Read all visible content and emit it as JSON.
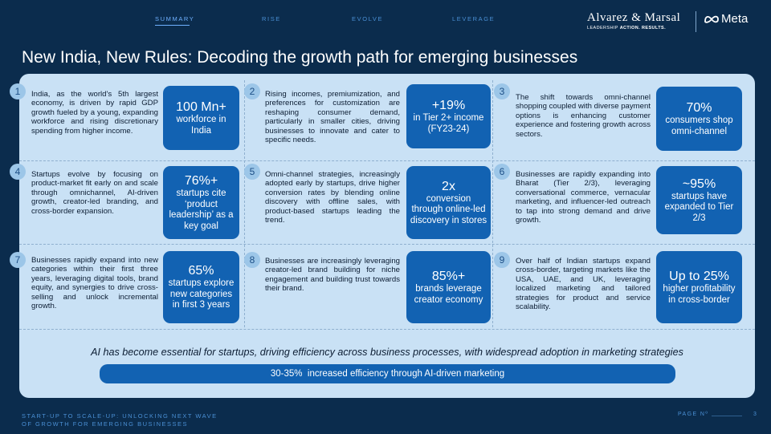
{
  "nav": {
    "items": [
      "SUMMARY",
      "RISE",
      "EVOLVE",
      "LEVERAGE"
    ],
    "active": "SUMMARY"
  },
  "brand": {
    "am_name": "Alvarez & Marsal",
    "am_tagline_prefix": "LEADERSHIP ",
    "am_tagline_bold": "ACTION. RESULTS.",
    "meta_name": "Meta",
    "meta_icon": "meta-infinity-logo"
  },
  "title": "New India, New Rules: Decoding the growth path for emerging businesses",
  "cards": [
    {
      "num": "1",
      "text": "India, as the world's 5th largest economy, is driven by rapid GDP growth fueled by a young, expanding workforce and rising discretionary spending from higher income.",
      "stat_big": "100 Mn+",
      "stat_small": "workforce in India"
    },
    {
      "num": "2",
      "text": "Rising incomes, premiumization, and preferences for customization are reshaping consumer demand, particularly in smaller cities, driving businesses to innovate and cater to specific needs.",
      "stat_big": "+19%",
      "stat_small": "in Tier 2+ income (FY23-24)"
    },
    {
      "num": "3",
      "text": "The shift towards omni-channel shopping coupled with diverse payment options is enhancing customer experience and fostering growth across sectors.",
      "stat_big": "70%",
      "stat_small": "consumers shop omni-channel"
    },
    {
      "num": "4",
      "text": "Startups evolve by focusing on product-market fit early on and scale through omnichannel, AI-driven growth, creator-led branding, and cross-border expansion.",
      "stat_big": "76%+",
      "stat_small": "startups cite ‘product leadership’ as a key goal"
    },
    {
      "num": "5",
      "text": "Omni-channel strategies, increasingly adopted early by startups, drive higher conversion rates by blending online discovery with offline sales, with product-based startups leading the trend.",
      "stat_big": "2x",
      "stat_small": "conversion through online-led discovery in stores"
    },
    {
      "num": "6",
      "text": "Businesses are rapidly expanding into Bharat (Tier 2/3), leveraging conversational commerce, vernacular marketing, and influencer-led outreach to tap into strong demand and drive growth.",
      "stat_big": "~95%",
      "stat_small": "startups have expanded to Tier 2/3"
    },
    {
      "num": "7",
      "text": "Businesses rapidly expand into new categories within their first three years, leveraging digital tools, brand equity, and synergies to drive cross-selling and unlock incremental growth.",
      "stat_big": "65%",
      "stat_small": "startups explore new categories in first 3 years"
    },
    {
      "num": "8",
      "text": "Businesses are increasingly leveraging creator-led brand building for niche engagement and building trust towards their brand.",
      "stat_big": "85%+",
      "stat_small": "brands leverage creator economy"
    },
    {
      "num": "9",
      "text": "Over half of Indian startups expand cross-border, targeting markets like the USA, UAE, and UK, leveraging localized marketing and tailored strategies for product and service scalability.",
      "stat_big": "Up to 25%",
      "stat_small": "higher profitability in cross-border"
    }
  ],
  "ai": {
    "statement": "AI has become essential for startups, driving efficiency across business processes, with widespread adoption in marketing strategies",
    "bar": "30-35%  increased efficiency through AI-driven marketing"
  },
  "footer": {
    "line1": "START-UP TO SCALE-UP: UNLOCKING NEXT WAVE",
    "line2": "OF GROWTH FOR EMERGING BUSINESSES",
    "page_label": "PAGE Nº",
    "page_number": "3"
  }
}
